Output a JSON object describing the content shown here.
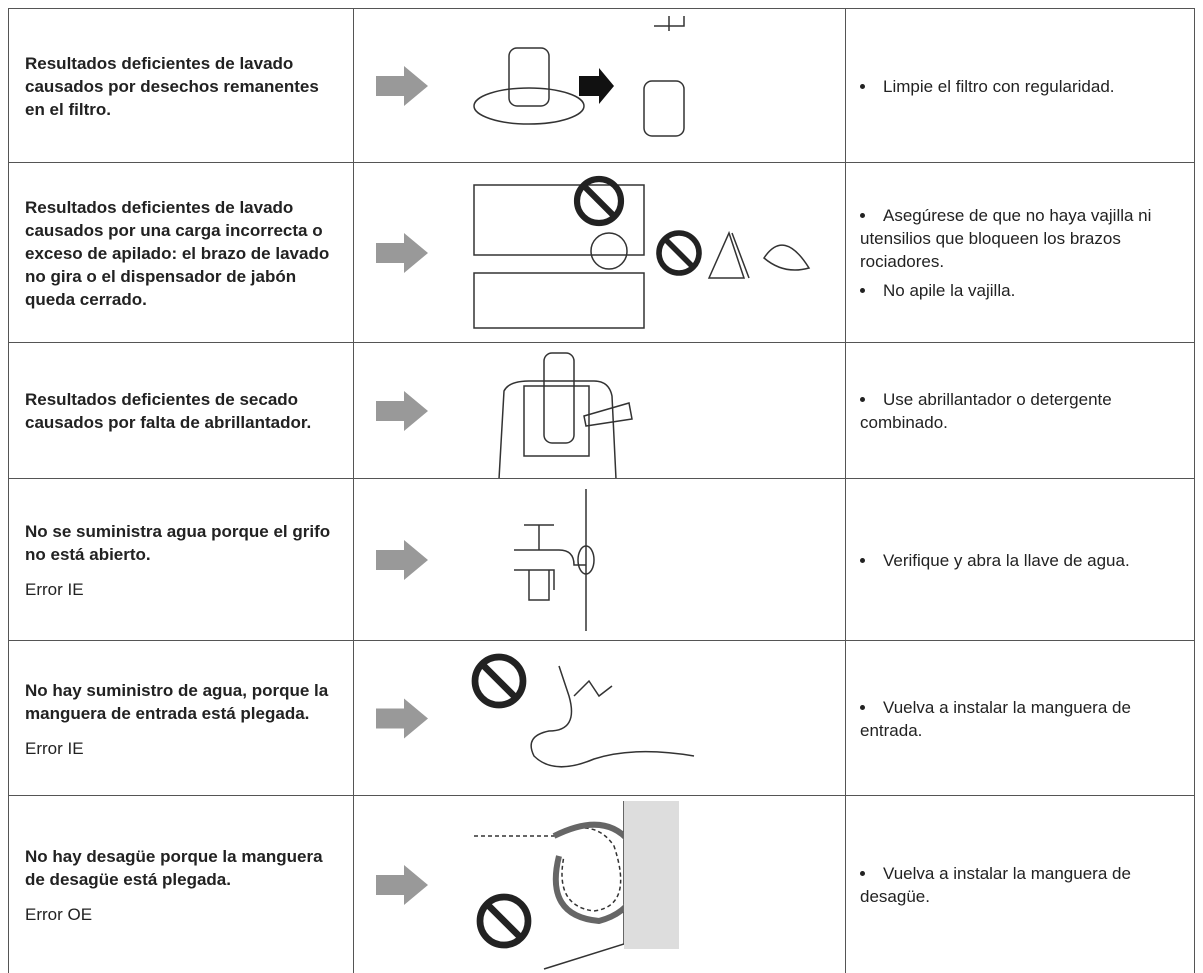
{
  "rows": [
    {
      "problem": "Resultados deficientes de lavado causados por desechos remanentes en el filtro.",
      "solutions": [
        "Limpie el filtro con regularidad."
      ]
    },
    {
      "problem": "Resultados deficientes de lavado causados por una carga incorrecta o exceso de apilado: el brazo de lavado no gira o el dispensador de jabón queda cerrado.",
      "solutions": [
        "Asegúrese de que no haya vajilla ni utensilios que bloqueen los brazos rociadores.",
        "No apile la vajilla."
      ]
    },
    {
      "problem": "Resultados deficientes de secado causados por falta de abrillantador.",
      "solutions": [
        "Use abrillantador o detergente combinado."
      ]
    },
    {
      "problem": "No se suministra agua porque el grifo no está abierto.",
      "error": "Error IE",
      "solutions": [
        "Verifique y abra la llave de agua."
      ]
    },
    {
      "problem": "No hay suministro de agua, porque la manguera de entrada está plegada.",
      "error": "Error IE",
      "solutions": [
        "Vuelva a instalar la manguera de entrada."
      ]
    },
    {
      "problem": "No hay desagüe porque la manguera de desagüe está plegada.",
      "error": "Error OE",
      "solutions": [
        "Vuelva a instalar la manguera de desagüe."
      ]
    }
  ]
}
